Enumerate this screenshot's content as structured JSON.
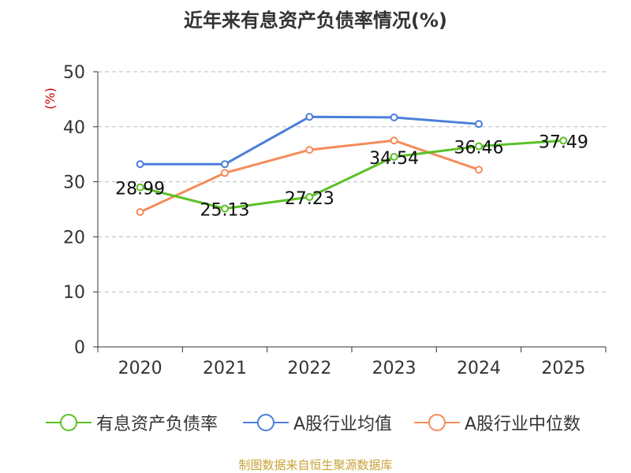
{
  "title": "近年来有息资产负债率情况(%)",
  "source": "制图数据来自恒生聚源数据库",
  "colors": {
    "series_1": "#5ac126",
    "series_2": "#4c7fda",
    "series_3": "#f48c5a",
    "unit_label": "#cc0000",
    "axis": "#333333",
    "grid": "#bbbbbb",
    "source": "#c8a236"
  },
  "chart_data": {
    "type": "line",
    "title": "近年来有息资产负债率情况(%)",
    "ylabel": "(%)",
    "xlabel": "",
    "categories": [
      "2020",
      "2021",
      "2022",
      "2023",
      "2024",
      "2025"
    ],
    "ylim": [
      0,
      50
    ],
    "yticks": [
      0,
      10,
      20,
      30,
      40,
      50
    ],
    "grid": true,
    "legend_position": "bottom",
    "series": [
      {
        "name": "有息资产负债率",
        "values": [
          28.99,
          25.13,
          27.23,
          34.54,
          36.46,
          37.49
        ],
        "labels": [
          "28.99",
          "25.13",
          "27.23",
          "34.54",
          "36.46",
          "37.49"
        ],
        "show_labels": true
      },
      {
        "name": "A股行业均值",
        "values": [
          33.2,
          33.2,
          41.8,
          41.7,
          40.5,
          null
        ],
        "show_labels": false
      },
      {
        "name": "A股行业中位数",
        "values": [
          24.5,
          31.6,
          35.8,
          37.5,
          32.2,
          null
        ],
        "show_labels": false
      }
    ]
  }
}
